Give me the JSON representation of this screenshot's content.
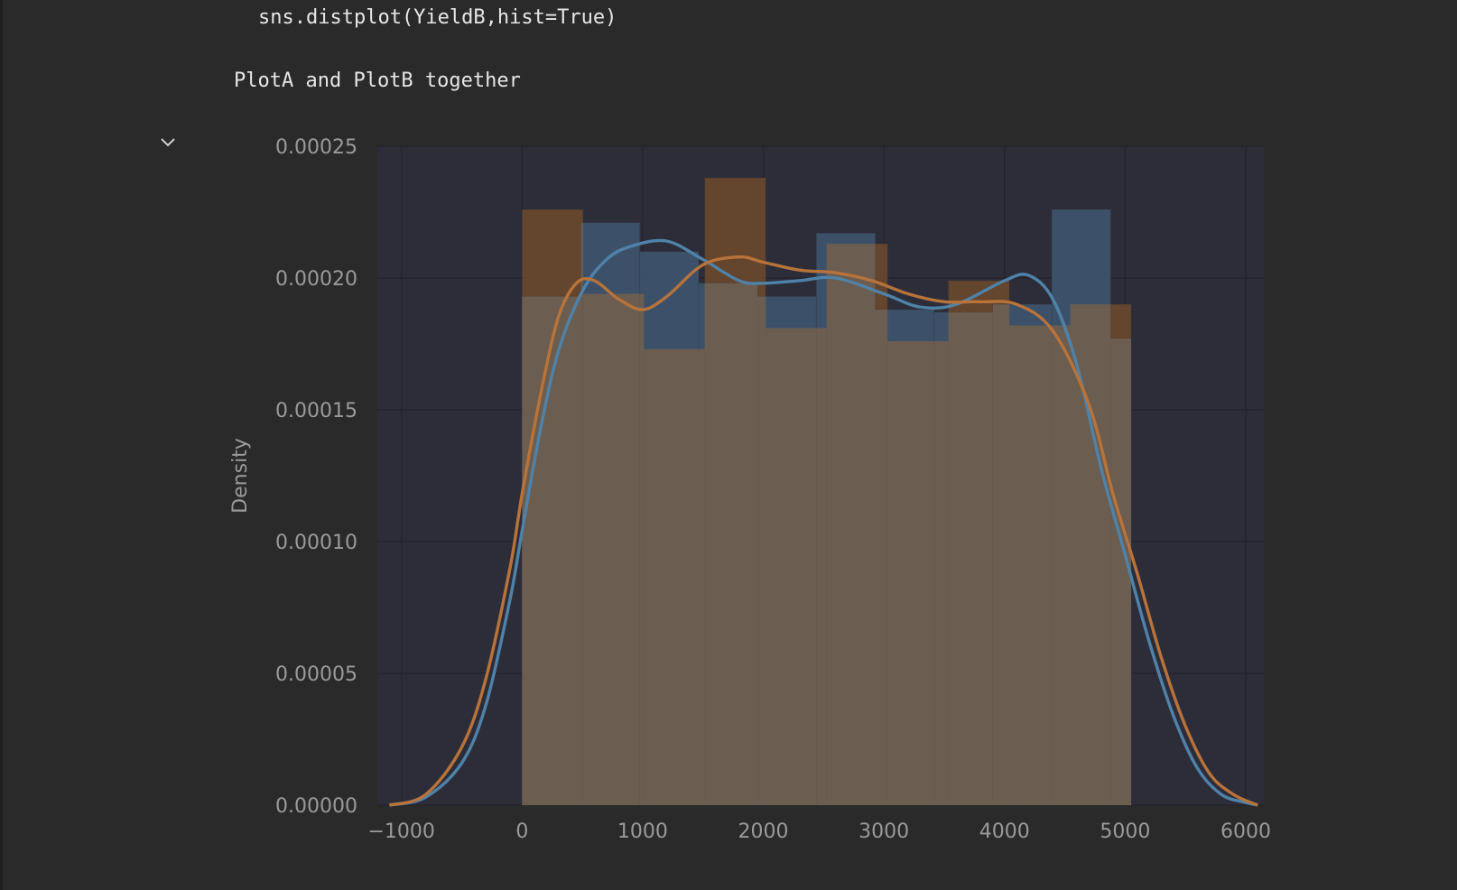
{
  "cell": {
    "code": "sns.distplot(YieldB,hist=True)",
    "markdown": "PlotA and PlotB together",
    "toggle_icon": "chevron-down-icon"
  },
  "colors": {
    "background": "#2a2a2b",
    "plot_bg": "#2d2d3a",
    "grid": "#23232b",
    "blue": "#4f82a8",
    "orange": "#b8733a",
    "bar_blue": "#3f5872",
    "bar_orange": "#6f4a2c",
    "bar_overlap": "#6b5d50",
    "tick_text": "#9a9a9a"
  },
  "chart_data": {
    "type": "bar",
    "xlabel": "",
    "ylabel": "Density",
    "xlim": [
      -1200,
      6150
    ],
    "ylim": [
      0,
      0.00025
    ],
    "xticks": [
      -1000,
      0,
      1000,
      2000,
      3000,
      4000,
      5000,
      6000
    ],
    "yticks": [
      0.0,
      5e-05,
      0.0001,
      0.00015,
      0.0002,
      0.00025
    ],
    "xtick_labels": [
      "−1000",
      "0",
      "1000",
      "2000",
      "3000",
      "4000",
      "5000",
      "6000"
    ],
    "ytick_labels": [
      "0.00000",
      "0.00005",
      "0.00010",
      "0.00015",
      "0.00020",
      "0.00025"
    ],
    "grid": true,
    "series": [
      {
        "kind": "histogram",
        "color": "orange",
        "bins": [
          {
            "x0": 0,
            "x1": 505,
            "y": 0.000226
          },
          {
            "x0": 505,
            "x1": 1010,
            "y": 0.000194
          },
          {
            "x0": 1010,
            "x1": 1515,
            "y": 0.000173
          },
          {
            "x0": 1515,
            "x1": 2020,
            "y": 0.000238
          },
          {
            "x0": 2020,
            "x1": 2525,
            "y": 0.000181
          },
          {
            "x0": 2525,
            "x1": 3030,
            "y": 0.000213
          },
          {
            "x0": 3030,
            "x1": 3535,
            "y": 0.000176
          },
          {
            "x0": 3535,
            "x1": 4040,
            "y": 0.000199
          },
          {
            "x0": 4040,
            "x1": 4545,
            "y": 0.000182
          },
          {
            "x0": 4545,
            "x1": 5050,
            "y": 0.00019
          }
        ]
      },
      {
        "kind": "histogram",
        "color": "blue",
        "bins": [
          {
            "x0": 0,
            "x1": 488,
            "y": 0.000193
          },
          {
            "x0": 488,
            "x1": 976,
            "y": 0.000221
          },
          {
            "x0": 976,
            "x1": 1464,
            "y": 0.00021
          },
          {
            "x0": 1464,
            "x1": 1952,
            "y": 0.000198
          },
          {
            "x0": 1952,
            "x1": 2440,
            "y": 0.000193
          },
          {
            "x0": 2440,
            "x1": 2928,
            "y": 0.000217
          },
          {
            "x0": 2928,
            "x1": 3416,
            "y": 0.000188
          },
          {
            "x0": 3416,
            "x1": 3904,
            "y": 0.000187
          },
          {
            "x0": 3904,
            "x1": 4392,
            "y": 0.00019
          },
          {
            "x0": 4392,
            "x1": 4880,
            "y": 0.000226
          },
          {
            "x0": 4880,
            "x1": 5050,
            "y": 0.000177
          }
        ]
      },
      {
        "kind": "kde",
        "color": "blue",
        "x": [
          -1100,
          -800,
          -500,
          -300,
          -100,
          0,
          150,
          300,
          500,
          700,
          900,
          1200,
          1500,
          1800,
          2000,
          2300,
          2600,
          3000,
          3300,
          3600,
          4000,
          4200,
          4400,
          4600,
          4800,
          5000,
          5200,
          5400,
          5600,
          5800,
          6000,
          6100
        ],
        "y": [
          0.0,
          3e-06,
          1.6e-05,
          3.8e-05,
          7.8e-05,
          0.000104,
          0.000142,
          0.000172,
          0.000195,
          0.000207,
          0.000212,
          0.000214,
          0.000207,
          0.000199,
          0.000198,
          0.000199,
          0.0002,
          0.000194,
          0.000189,
          0.00019,
          0.000199,
          0.000201,
          0.000192,
          0.000167,
          0.000128,
          9.5e-05,
          6.2e-05,
          3.4e-05,
          1.4e-05,
          4e-06,
          1e-06,
          0.0
        ]
      },
      {
        "kind": "kde",
        "color": "orange",
        "x": [
          -1100,
          -800,
          -500,
          -300,
          -100,
          0,
          150,
          300,
          450,
          600,
          800,
          1000,
          1200,
          1500,
          1800,
          2000,
          2300,
          2600,
          2900,
          3200,
          3500,
          3800,
          4100,
          4400,
          4700,
          4900,
          5100,
          5300,
          5500,
          5700,
          5900,
          6100
        ],
        "y": [
          0.0,
          4e-06,
          2.2e-05,
          4.8e-05,
          9e-05,
          0.000118,
          0.000155,
          0.000185,
          0.000198,
          0.000199,
          0.000192,
          0.000188,
          0.000193,
          0.000205,
          0.000208,
          0.000206,
          0.000203,
          0.000202,
          0.000199,
          0.000194,
          0.000191,
          0.000191,
          0.00019,
          0.00018,
          0.000152,
          0.000118,
          8.8e-05,
          5.6e-05,
          3e-05,
          1.2e-05,
          4e-06,
          0.0
        ]
      }
    ]
  }
}
